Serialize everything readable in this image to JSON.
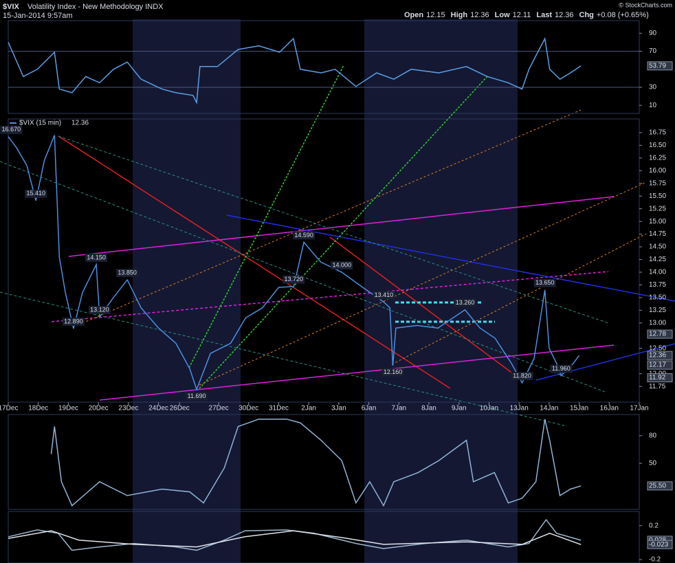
{
  "header": {
    "symbol": "$VIX",
    "name": "Volatility Index - New Methodology INDX",
    "timestamp": "15-Jan-2014 9:57am",
    "credit": "© StockCharts.com",
    "quote": [
      {
        "label": "Open",
        "value": "12.15"
      },
      {
        "label": "High",
        "value": "12.36"
      },
      {
        "label": "Low",
        "value": "12.11"
      },
      {
        "label": "Last",
        "value": "12.36"
      },
      {
        "label": "Chg",
        "value": "+0.08 (+0.65%)"
      }
    ]
  },
  "chart_data": [
    {
      "type": "line",
      "xlim": [
        0,
        21
      ],
      "ylim": [
        1,
        104
      ],
      "yticks": [
        90,
        70,
        30,
        10
      ],
      "bands": [
        70,
        30
      ],
      "series": [
        {
          "color": "#5aa0e6",
          "x": [
            0,
            0.5,
            0.97,
            1.54,
            1.7,
            2.12,
            2.58,
            3.04,
            3.5,
            3.96,
            4.42,
            5.12,
            5.58,
            6.15,
            6.27,
            6.38,
            6.96,
            7.65,
            8.34,
            9.03,
            9.49,
            9.72,
            10.41,
            10.88,
            11.57,
            12.26,
            12.83,
            13.41,
            14.33,
            15.25,
            15.94,
            16.64,
            17.1,
            17.33,
            17.67,
            17.86,
            18.02,
            18.36,
            18.71,
            19.06
          ],
          "values": [
            80,
            42,
            50,
            69,
            28,
            24,
            42,
            35,
            50,
            58,
            39,
            28,
            24,
            21,
            13,
            53,
            53,
            72,
            76,
            69,
            84,
            50,
            46,
            50,
            31,
            46,
            39,
            50,
            46,
            53,
            42,
            35,
            28,
            50,
            72,
            84,
            50,
            39,
            46,
            53.79
          ]
        }
      ],
      "badges": [
        53.79
      ]
    },
    {
      "type": "line",
      "xlim": [
        0,
        21
      ],
      "ylim": [
        11.44,
        17.02
      ],
      "yticks": [
        16.75,
        {
          "value": 16.5,
          "label": "16.50"
        },
        16.25,
        {
          "value": 16,
          "label": "16.00"
        },
        15.75,
        {
          "value": 15.5,
          "label": "15.50"
        },
        15.25,
        {
          "value": 15,
          "label": "15.00"
        },
        14.75,
        {
          "value": 14.5,
          "label": "14.50"
        },
        14.25,
        {
          "value": 14,
          "label": "14.00"
        },
        13.75,
        {
          "value": 13.5,
          "label": "13.50"
        },
        13.25,
        {
          "value": 13,
          "label": "13.00"
        },
        {
          "value": 12.5,
          "label": "12.50"
        },
        {
          "value": 12,
          "label": "12.00"
        },
        11.75
      ],
      "xticks": [
        {
          "value": 0,
          "label": "17Dec"
        },
        {
          "value": 1,
          "label": "18Dec"
        },
        {
          "value": 2,
          "label": "19Dec"
        },
        {
          "value": 3,
          "label": "20Dec"
        },
        {
          "value": 4,
          "label": "23Dec"
        },
        {
          "value": 5,
          "label": "24Dec"
        },
        {
          "value": 5.7,
          "label": "26Dec"
        },
        {
          "value": 7,
          "label": "27Dec"
        },
        {
          "value": 8,
          "label": "30Dec"
        },
        {
          "value": 9,
          "label": "31Dec"
        },
        {
          "value": 10,
          "label": "2Jan"
        },
        {
          "value": 11,
          "label": "3Jan"
        },
        {
          "value": 12,
          "label": "6Jan"
        },
        {
          "value": 13,
          "label": "7Jan"
        },
        {
          "value": 14,
          "label": "8Jan"
        },
        {
          "value": 15,
          "label": "9Jan"
        },
        {
          "value": 16,
          "label": "10Jan"
        },
        {
          "value": 17,
          "label": "13Jan"
        },
        {
          "value": 18,
          "label": "14Jan"
        },
        {
          "value": 19,
          "label": "15Jan"
        },
        {
          "value": 20,
          "label": "16Jan"
        },
        {
          "value": 21,
          "label": "17Jan"
        }
      ],
      "legend_value": "12.36",
      "series": [
        {
          "name": "$VIX (15 min)",
          "color": "#4a90e2",
          "x": [
            0,
            0.28,
            0.62,
            0.92,
            1.2,
            1.54,
            1.7,
            1.9,
            2.17,
            2.47,
            2.93,
            3.04,
            3.5,
            3.96,
            4.42,
            5.0,
            5.58,
            6.04,
            6.27,
            6.73,
            7.4,
            7.9,
            8.46,
            9.0,
            9.5,
            9.84,
            10.4,
            11.1,
            11.8,
            12.5,
            12.7,
            12.8,
            12.9,
            13.6,
            14.3,
            15.2,
            15.7,
            16.2,
            16.75,
            17.1,
            17.5,
            17.86,
            18.0,
            18.25,
            18.4,
            18.8,
            19.0
          ],
          "values": [
            16.67,
            16.45,
            16.1,
            15.41,
            16.2,
            16.7,
            14.3,
            13.6,
            12.89,
            13.6,
            14.15,
            13.12,
            13.5,
            13.85,
            13.3,
            12.9,
            12.6,
            12.1,
            11.69,
            12.4,
            12.6,
            13.1,
            13.3,
            13.7,
            13.72,
            14.59,
            14.2,
            14.0,
            13.7,
            13.41,
            13.3,
            12.16,
            12.9,
            12.95,
            12.9,
            13.26,
            12.9,
            12.7,
            12.2,
            11.82,
            12.3,
            13.65,
            12.5,
            12.2,
            11.96,
            12.2,
            12.36
          ]
        }
      ],
      "annotations": [
        {
          "x": 0.1,
          "value": 16.67,
          "label": "16.670"
        },
        {
          "x": 0.92,
          "value": 15.41,
          "label": "15.410"
        },
        {
          "x": 2.93,
          "value": 14.15,
          "label": "14.150"
        },
        {
          "x": 3.96,
          "value": 13.85,
          "label": "13.850"
        },
        {
          "x": 3.04,
          "value": 13.12,
          "label": "13.120"
        },
        {
          "x": 2.17,
          "value": 12.89,
          "label": "12.890"
        },
        {
          "x": 6.27,
          "value": 11.69,
          "label": "11.690"
        },
        {
          "x": 9.84,
          "value": 14.59,
          "label": "14.590"
        },
        {
          "x": 9.5,
          "value": 13.72,
          "label": "13.720"
        },
        {
          "x": 11.1,
          "value": 14.0,
          "label": "14.000"
        },
        {
          "x": 12.5,
          "value": 13.41,
          "label": "13.410"
        },
        {
          "x": 15.2,
          "value": 13.26,
          "label": "13.260"
        },
        {
          "x": 12.8,
          "value": 12.16,
          "label": "12.160"
        },
        {
          "x": 17.1,
          "value": 11.82,
          "label": "11.820"
        },
        {
          "x": 17.86,
          "value": 13.65,
          "label": "13.650"
        },
        {
          "x": 18.4,
          "value": 11.96,
          "label": "11.960"
        }
      ],
      "badges": [
        12.78,
        12.36,
        12.17,
        11.92
      ]
    },
    {
      "type": "line",
      "xlim": [
        0,
        21
      ],
      "ylim": [
        0,
        103
      ],
      "yticks": [
        80,
        50
      ],
      "series": [
        {
          "color": "#8fb4d8",
          "x": [
            1.43,
            1.54,
            1.77,
            2.12,
            3.04,
            3.96,
            5.12,
            6.04,
            6.5,
            7.19,
            7.65,
            8.34,
            9.26,
            9.72,
            10.41,
            11.1,
            11.57,
            12.03,
            12.49,
            12.83,
            13.64,
            14.33,
            15.25,
            15.48,
            16.18,
            16.64,
            17.1,
            17.56,
            17.86,
            18.02,
            18.36,
            18.71,
            19.06
          ],
          "values": [
            60,
            90,
            30,
            4,
            30,
            15,
            22,
            19,
            7,
            45,
            90,
            98,
            98,
            94,
            75,
            53,
            7,
            30,
            4,
            30,
            40,
            53,
            75,
            30,
            40,
            7,
            12,
            30,
            98,
            75,
            15,
            22,
            25.5
          ]
        }
      ],
      "badges": [
        {
          "value": 25.5,
          "label": "25.50"
        }
      ]
    },
    {
      "type": "line",
      "xlim": [
        0,
        21
      ],
      "ylim": [
        -0.24,
        0.368
      ],
      "yticks": [
        0.2,
        -0.2
      ],
      "series": [
        {
          "color": "#9fb8d0",
          "x": [
            0,
            0.97,
            1.66,
            2.12,
            3.04,
            4.19,
            5.58,
            6.27,
            7.19,
            7.88,
            9.26,
            10.18,
            11.57,
            12.49,
            13.87,
            15.25,
            16.64,
            17.33,
            17.9,
            18.25,
            19.06
          ],
          "values": [
            0.07,
            0.15,
            0.11,
            -0.09,
            -0.05,
            -0.01,
            -0.05,
            -0.09,
            0.03,
            0.14,
            0.15,
            0.11,
            -0.01,
            -0.07,
            -0.01,
            0.03,
            -0.05,
            -0.01,
            0.27,
            0.11,
            0.028
          ]
        },
        {
          "color": "#e0e4ea",
          "x": [
            0,
            1.43,
            2.35,
            4.19,
            6.27,
            7.88,
            9.49,
            11.1,
            12.49,
            15.25,
            17.1,
            18.02,
            19.06
          ],
          "values": [
            0.05,
            0.14,
            0.03,
            -0.02,
            -0.05,
            0.07,
            0.14,
            0.06,
            -0.02,
            0.01,
            -0.02,
            0.11,
            -0.023
          ]
        }
      ],
      "badges": [
        0.028,
        -0.023
      ]
    }
  ]
}
